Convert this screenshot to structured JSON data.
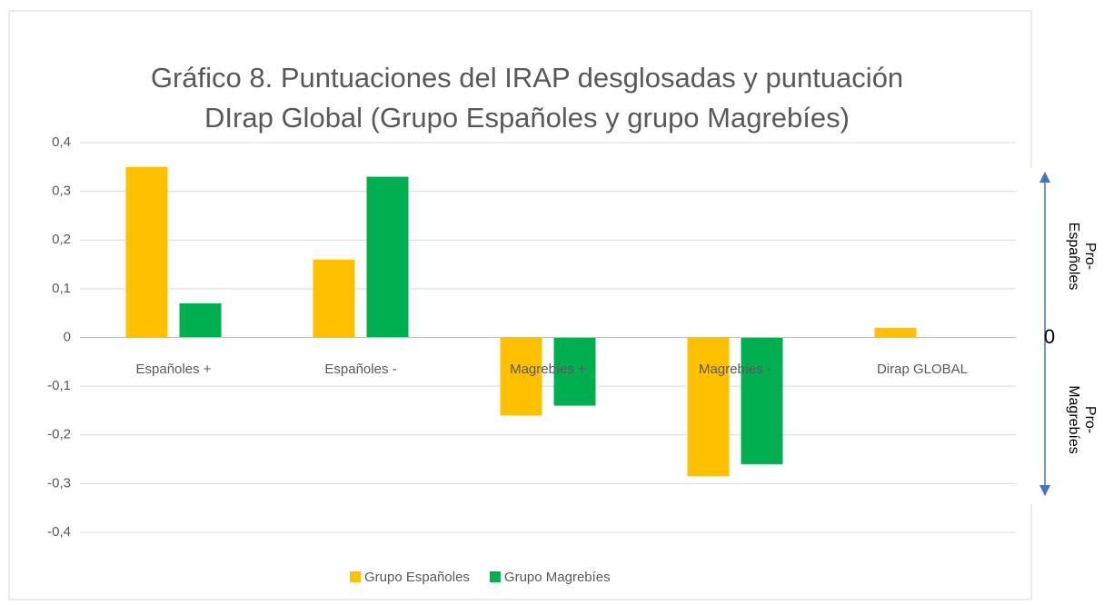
{
  "chart_data": {
    "type": "bar",
    "title": [
      "Gráfico 8. Puntuaciones del IRAP desglosadas y puntuación",
      "DIrap Global (Grupo Españoles y grupo Magrebíes)"
    ],
    "categories": [
      "Españoles +",
      "Españoles -",
      "Magrebíes +",
      "Magrebíes -",
      "Dirap GLOBAL"
    ],
    "series": [
      {
        "name": "Grupo Españoles",
        "color": "#ffc000",
        "values": [
          0.35,
          0.16,
          -0.16,
          -0.285,
          0.02
        ]
      },
      {
        "name": "Grupo Magrebíes",
        "color": "#00b050",
        "values": [
          0.07,
          0.33,
          -0.14,
          -0.26,
          0
        ]
      }
    ],
    "ylim": [
      -0.4,
      0.4
    ],
    "yticks": [
      {
        "value": 0.4,
        "label": "0,4"
      },
      {
        "value": 0.3,
        "label": "0,3"
      },
      {
        "value": 0.2,
        "label": "0,2"
      },
      {
        "value": 0.1,
        "label": "0,1"
      },
      0,
      {
        "value": -0.1,
        "label": "-0,1"
      },
      {
        "value": -0.2,
        "label": "-0,2"
      },
      {
        "value": -0.3,
        "label": "-0,3"
      },
      {
        "value": -0.4,
        "label": "-0,4"
      }
    ],
    "grid": true,
    "legend": "bottom",
    "annotations": [
      {
        "lines": [
          "Pro-",
          "Españoles"
        ]
      },
      {
        "lines": [
          "0"
        ]
      },
      {
        "lines": [
          "Pro-",
          "Magrebíes"
        ]
      }
    ]
  }
}
